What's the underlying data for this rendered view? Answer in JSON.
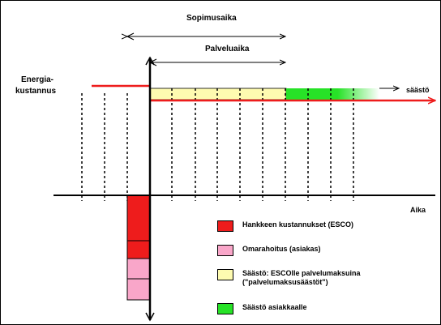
{
  "labels": {
    "contract_period": "Sopimusaika",
    "service_period": "Palveluaika",
    "energy_costs": "Energia-\nkustannus",
    "savings": "säästö",
    "time": "Aika"
  },
  "legend": [
    {
      "label": "Hankkeen kustannukset (ESCO)",
      "color": "#ee1c1c"
    },
    {
      "label": "Omarahoitus (asiakas)",
      "color": "#f9a6c9"
    },
    {
      "label": "Säästö: ESCOlle palvelumaksuina\n(\"palvelumaksusäästöt\")",
      "color": "#fefbb0"
    },
    {
      "label": "Säästö asiakkaalle",
      "color": "#27e227"
    }
  ],
  "colors": {
    "energy_line": "#ee1c1c",
    "axis": "#000000",
    "border": "#000000"
  }
}
